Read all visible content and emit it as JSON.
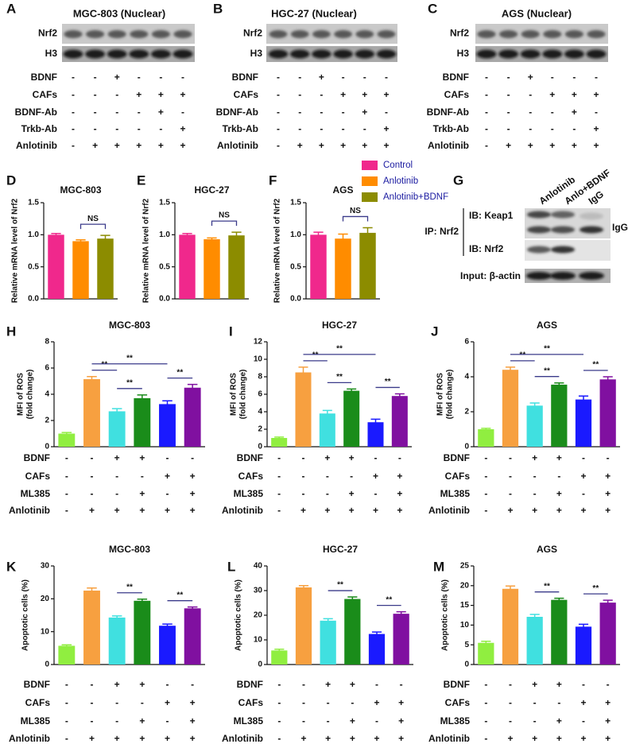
{
  "blots": [
    {
      "letter": "A",
      "title": "MGC-803 (Nuclear)",
      "bands": [
        "Nrf2",
        "H3"
      ],
      "conditions": [
        {
          "label": "BDNF",
          "signs": [
            "-",
            "-",
            "+",
            "-",
            "-",
            "-"
          ]
        },
        {
          "label": "CAFs",
          "signs": [
            "-",
            "-",
            "-",
            "+",
            "+",
            "+"
          ]
        },
        {
          "label": "BDNF-Ab",
          "signs": [
            "-",
            "-",
            "-",
            "-",
            "+",
            "-"
          ]
        },
        {
          "label": "Trkb-Ab",
          "signs": [
            "-",
            "-",
            "-",
            "-",
            "-",
            "+"
          ]
        },
        {
          "label": "Anlotinib",
          "signs": [
            "-",
            "+",
            "+",
            "+",
            "+",
            "+"
          ]
        }
      ]
    },
    {
      "letter": "B",
      "title": "HGC-27 (Nuclear)",
      "bands": [
        "Nrf2",
        "H3"
      ],
      "conditions": [
        {
          "label": "BDNF",
          "signs": [
            "-",
            "-",
            "+",
            "-",
            "-",
            "-"
          ]
        },
        {
          "label": "CAFs",
          "signs": [
            "-",
            "-",
            "-",
            "+",
            "+",
            "+"
          ]
        },
        {
          "label": "BDNF-Ab",
          "signs": [
            "-",
            "-",
            "-",
            "-",
            "+",
            "-"
          ]
        },
        {
          "label": "Trkb-Ab",
          "signs": [
            "-",
            "-",
            "-",
            "-",
            "-",
            "+"
          ]
        },
        {
          "label": "Anlotinib",
          "signs": [
            "-",
            "+",
            "+",
            "+",
            "+",
            "+"
          ]
        }
      ]
    },
    {
      "letter": "C",
      "title": "AGS (Nuclear)",
      "bands": [
        "Nrf2",
        "H3"
      ],
      "conditions": [
        {
          "label": "BDNF",
          "signs": [
            "-",
            "-",
            "+",
            "-",
            "-",
            "-"
          ]
        },
        {
          "label": "CAFs",
          "signs": [
            "-",
            "-",
            "-",
            "+",
            "+",
            "+"
          ]
        },
        {
          "label": "BDNF-Ab",
          "signs": [
            "-",
            "-",
            "-",
            "-",
            "+",
            "-"
          ]
        },
        {
          "label": "Trkb-Ab",
          "signs": [
            "-",
            "-",
            "-",
            "-",
            "-",
            "+"
          ]
        },
        {
          "label": "Anlotinib",
          "signs": [
            "-",
            "+",
            "+",
            "+",
            "+",
            "+"
          ]
        }
      ]
    }
  ],
  "ip_panel": {
    "letter": "G",
    "columns": [
      "Anlotinib",
      "Anlo+BDNF",
      "IgG"
    ],
    "ip_label": "IP: Nrf2",
    "rows": [
      "IB: Keap1",
      "IB: Nrf2"
    ],
    "input_label": "Input: β-actin",
    "side_label": "IgG"
  },
  "chart_data": [
    {
      "letter": "D",
      "type": "bar",
      "title": "MGC-803",
      "y_label": [
        "Relative mRNA level of Nrf2"
      ],
      "values": [
        1.0,
        0.9,
        0.94
      ],
      "errors": [
        0.02,
        0.02,
        0.05
      ],
      "colors": [
        "#f0288c",
        "#ff8c00",
        "#8c8c00"
      ],
      "ylim": [
        0,
        1.5
      ],
      "yticks": [
        {
          "value": 0,
          "label": "0.0"
        },
        0.5,
        {
          "value": 1,
          "label": "1.0"
        },
        1.5
      ],
      "brackets": [
        {
          "label": "NS",
          "bars": [
            1,
            2
          ]
        }
      ]
    },
    {
      "letter": "E",
      "type": "bar",
      "title": "HGC-27",
      "y_label": [
        "Relative mRNA level of Nrf2"
      ],
      "values": [
        1.0,
        0.93,
        0.99
      ],
      "errors": [
        0.02,
        0.02,
        0.05
      ],
      "colors": [
        "#f0288c",
        "#ff8c00",
        "#8c8c00"
      ],
      "ylim": [
        0,
        1.5
      ],
      "yticks": [
        {
          "value": 0,
          "label": "0.0"
        },
        0.5,
        {
          "value": 1,
          "label": "1.0"
        },
        1.5
      ],
      "brackets": [
        {
          "label": "NS",
          "bars": [
            1,
            2
          ]
        }
      ]
    },
    {
      "letter": "F",
      "type": "bar",
      "title": "AGS",
      "y_label": [
        "Relative mRNA level of Nrf2"
      ],
      "values": [
        1.0,
        0.94,
        1.03
      ],
      "errors": [
        0.04,
        0.07,
        0.08
      ],
      "colors": [
        "#f0288c",
        "#ff8c00",
        "#8c8c00"
      ],
      "ylim": [
        0,
        1.5
      ],
      "yticks": [
        {
          "value": 0,
          "label": "0.0"
        },
        0.5,
        {
          "value": 1,
          "label": "1.0"
        },
        1.5
      ],
      "brackets": [
        {
          "label": "NS",
          "bars": [
            1,
            2
          ]
        }
      ],
      "legend": [
        "Control",
        "Anlotinib",
        "Anlotinib+BDNF"
      ]
    },
    {
      "letter": "H",
      "type": "bar",
      "title": "MGC-803",
      "y_label": [
        "MFI of ROS",
        "(fold change)"
      ],
      "values": [
        1.0,
        5.15,
        2.7,
        3.7,
        3.25,
        4.5
      ],
      "errors": [
        0.08,
        0.2,
        0.2,
        0.25,
        0.25,
        0.25
      ],
      "colors": [
        "#90ee40",
        "#f7a040",
        "#40e0e0",
        "#1a8c1a",
        "#1a1aff",
        "#8010a0"
      ],
      "ylim": [
        0,
        8
      ],
      "yticks": [
        0,
        2,
        4,
        6,
        8
      ],
      "brackets": [
        {
          "label": "**",
          "bars": [
            1,
            2
          ]
        },
        {
          "label": "**",
          "bars": [
            2,
            3
          ]
        },
        {
          "label": "**",
          "bars": [
            1,
            4
          ]
        },
        {
          "label": "**",
          "bars": [
            4,
            5
          ]
        }
      ],
      "conditions": [
        {
          "label": "BDNF",
          "signs": [
            "-",
            "-",
            "+",
            "+",
            "-",
            "-"
          ]
        },
        {
          "label": "CAFs",
          "signs": [
            "-",
            "-",
            "-",
            "-",
            "+",
            "+"
          ]
        },
        {
          "label": "ML385",
          "signs": [
            "-",
            "-",
            "-",
            "+",
            "-",
            "+"
          ]
        },
        {
          "label": "Anlotinib",
          "signs": [
            "-",
            "+",
            "+",
            "+",
            "+",
            "+"
          ]
        }
      ]
    },
    {
      "letter": "I",
      "type": "bar",
      "title": "HGC-27",
      "y_label": [
        "MFI of ROS",
        "(fold change)"
      ],
      "values": [
        1.0,
        8.5,
        3.8,
        6.4,
        2.8,
        5.8
      ],
      "errors": [
        0.1,
        0.6,
        0.35,
        0.2,
        0.35,
        0.25
      ],
      "colors": [
        "#90ee40",
        "#f7a040",
        "#40e0e0",
        "#1a8c1a",
        "#1a1aff",
        "#8010a0"
      ],
      "ylim": [
        0,
        12
      ],
      "yticks": [
        0,
        2,
        4,
        6,
        8,
        10,
        12
      ],
      "brackets": [
        {
          "label": "**",
          "bars": [
            1,
            2
          ]
        },
        {
          "label": "**",
          "bars": [
            2,
            3
          ]
        },
        {
          "label": "**",
          "bars": [
            1,
            4
          ]
        },
        {
          "label": "**",
          "bars": [
            4,
            5
          ]
        }
      ],
      "conditions": [
        {
          "label": "BDNF",
          "signs": [
            "-",
            "-",
            "+",
            "+",
            "-",
            "-"
          ]
        },
        {
          "label": "CAFs",
          "signs": [
            "-",
            "-",
            "-",
            "-",
            "+",
            "+"
          ]
        },
        {
          "label": "ML385",
          "signs": [
            "-",
            "-",
            "-",
            "+",
            "-",
            "+"
          ]
        },
        {
          "label": "Anlotinib",
          "signs": [
            "-",
            "+",
            "+",
            "+",
            "+",
            "+"
          ]
        }
      ]
    },
    {
      "letter": "J",
      "type": "bar",
      "title": "AGS",
      "y_label": [
        "MFI of ROS",
        "(fold change)"
      ],
      "values": [
        1.0,
        4.4,
        2.35,
        3.55,
        2.7,
        3.85
      ],
      "errors": [
        0.05,
        0.15,
        0.15,
        0.1,
        0.2,
        0.15
      ],
      "colors": [
        "#90ee40",
        "#f7a040",
        "#40e0e0",
        "#1a8c1a",
        "#1a1aff",
        "#8010a0"
      ],
      "ylim": [
        0,
        6
      ],
      "yticks": [
        0,
        2,
        4,
        6
      ],
      "brackets": [
        {
          "label": "**",
          "bars": [
            1,
            2
          ]
        },
        {
          "label": "**",
          "bars": [
            2,
            3
          ]
        },
        {
          "label": "**",
          "bars": [
            1,
            4
          ]
        },
        {
          "label": "**",
          "bars": [
            4,
            5
          ]
        }
      ],
      "conditions": [
        {
          "label": "BDNF",
          "signs": [
            "-",
            "-",
            "+",
            "+",
            "-",
            "-"
          ]
        },
        {
          "label": "CAFs",
          "signs": [
            "-",
            "-",
            "-",
            "-",
            "+",
            "+"
          ]
        },
        {
          "label": "ML385",
          "signs": [
            "-",
            "-",
            "-",
            "+",
            "-",
            "+"
          ]
        },
        {
          "label": "Anlotinib",
          "signs": [
            "-",
            "+",
            "+",
            "+",
            "+",
            "+"
          ]
        }
      ]
    },
    {
      "letter": "K",
      "type": "bar",
      "title": "MGC-803",
      "y_label": [
        "Apoptotic cells (%)"
      ],
      "values": [
        5.7,
        22.5,
        14.3,
        19.4,
        11.8,
        17.1
      ],
      "errors": [
        0.3,
        0.8,
        0.5,
        0.5,
        0.5,
        0.4
      ],
      "colors": [
        "#90ee40",
        "#f7a040",
        "#40e0e0",
        "#1a8c1a",
        "#1a1aff",
        "#8010a0"
      ],
      "ylim": [
        0,
        30
      ],
      "yticks": [
        0,
        10,
        20,
        30
      ],
      "brackets": [
        {
          "label": "**",
          "bars": [
            2,
            3
          ]
        },
        {
          "label": "**",
          "bars": [
            4,
            5
          ]
        }
      ],
      "conditions": [
        {
          "label": "BDNF",
          "signs": [
            "-",
            "-",
            "+",
            "+",
            "-",
            "-"
          ]
        },
        {
          "label": "CAFs",
          "signs": [
            "-",
            "-",
            "-",
            "-",
            "+",
            "+"
          ]
        },
        {
          "label": "ML385",
          "signs": [
            "-",
            "-",
            "-",
            "+",
            "-",
            "+"
          ]
        },
        {
          "label": "Anlotinib",
          "signs": [
            "-",
            "+",
            "+",
            "+",
            "+",
            "+"
          ]
        }
      ]
    },
    {
      "letter": "L",
      "type": "bar",
      "title": "HGC-27",
      "y_label": [
        "Apoptotic cells (%)"
      ],
      "values": [
        5.7,
        31.3,
        17.8,
        26.6,
        12.4,
        20.6
      ],
      "errors": [
        0.5,
        0.7,
        0.8,
        0.8,
        0.8,
        0.8
      ],
      "colors": [
        "#90ee40",
        "#f7a040",
        "#40e0e0",
        "#1a8c1a",
        "#1a1aff",
        "#8010a0"
      ],
      "ylim": [
        0,
        40
      ],
      "yticks": [
        0,
        10,
        20,
        30,
        40
      ],
      "brackets": [
        {
          "label": "**",
          "bars": [
            2,
            3
          ]
        },
        {
          "label": "**",
          "bars": [
            4,
            5
          ]
        }
      ],
      "conditions": [
        {
          "label": "BDNF",
          "signs": [
            "-",
            "-",
            "+",
            "+",
            "-",
            "-"
          ]
        },
        {
          "label": "CAFs",
          "signs": [
            "-",
            "-",
            "-",
            "-",
            "+",
            "+"
          ]
        },
        {
          "label": "ML385",
          "signs": [
            "-",
            "-",
            "-",
            "+",
            "-",
            "+"
          ]
        },
        {
          "label": "Anlotinib",
          "signs": [
            "-",
            "+",
            "+",
            "+",
            "+",
            "+"
          ]
        }
      ]
    },
    {
      "letter": "M",
      "type": "bar",
      "title": "AGS",
      "y_label": [
        "Apoptotic cells (%)"
      ],
      "values": [
        5.5,
        19.2,
        12.1,
        16.4,
        9.6,
        15.7
      ],
      "errors": [
        0.4,
        0.7,
        0.6,
        0.4,
        0.6,
        0.6
      ],
      "colors": [
        "#90ee40",
        "#f7a040",
        "#40e0e0",
        "#1a8c1a",
        "#1a1aff",
        "#8010a0"
      ],
      "ylim": [
        0,
        25
      ],
      "yticks": [
        0,
        5,
        10,
        15,
        20,
        25
      ],
      "brackets": [
        {
          "label": "**",
          "bars": [
            2,
            3
          ]
        },
        {
          "label": "**",
          "bars": [
            4,
            5
          ]
        }
      ],
      "conditions": [
        {
          "label": "BDNF",
          "signs": [
            "-",
            "-",
            "+",
            "+",
            "-",
            "-"
          ]
        },
        {
          "label": "CAFs",
          "signs": [
            "-",
            "-",
            "-",
            "-",
            "+",
            "+"
          ]
        },
        {
          "label": "ML385",
          "signs": [
            "-",
            "-",
            "-",
            "+",
            "-",
            "+"
          ]
        },
        {
          "label": "Anlotinib",
          "signs": [
            "-",
            "+",
            "+",
            "+",
            "+",
            "+"
          ]
        }
      ]
    }
  ]
}
